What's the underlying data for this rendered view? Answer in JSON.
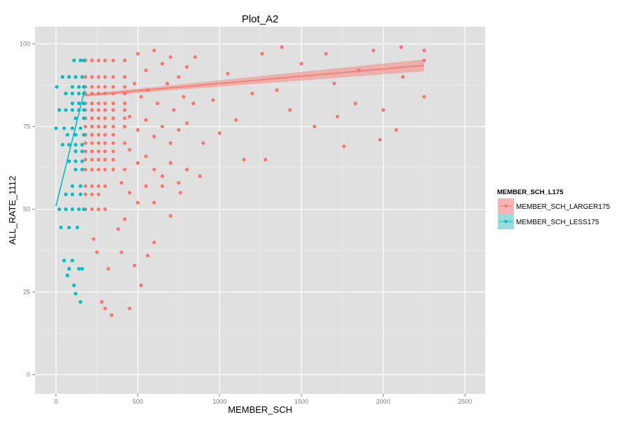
{
  "chart_data": {
    "type": "scatter",
    "title": "Plot_A2",
    "xlabel": "MEMBER_SCH",
    "ylabel": "ALL_RATE_1112",
    "xlim": [
      -128,
      2623
    ],
    "ylim": [
      -5.8,
      105.2
    ],
    "x_ticks": [
      0,
      500,
      1000,
      1500,
      2000,
      2500
    ],
    "x_tick_labels": [
      "0",
      "500",
      "1000",
      "1500",
      "2000",
      "2500"
    ],
    "y_ticks": [
      0,
      25,
      50,
      75,
      100
    ],
    "y_tick_labels": [
      "0",
      "25",
      "50",
      "75",
      "100"
    ],
    "grid": true,
    "background": "#e0e0e0",
    "legend": {
      "title": "MEMBER_SCH_L175",
      "placement": "right",
      "entries": [
        "MEMBER_SCH_LARGER175",
        "MEMBER_SCH_LESS175"
      ]
    },
    "series": [
      {
        "name": "MEMBER_SCH_LARGER175",
        "color": "#f8766d",
        "fit": {
          "x": [
            175,
            2250
          ],
          "y": [
            84.4,
            93.5
          ],
          "ci_halfwidth": [
            0.4,
            1.8
          ]
        },
        "points": [
          [
            180,
            95
          ],
          [
            220,
            95
          ],
          [
            260,
            95
          ],
          [
            300,
            95
          ],
          [
            350,
            95
          ],
          [
            420,
            95
          ],
          [
            180,
            90
          ],
          [
            220,
            90
          ],
          [
            260,
            90
          ],
          [
            300,
            90
          ],
          [
            350,
            90
          ],
          [
            420,
            90
          ],
          [
            180,
            87
          ],
          [
            220,
            87
          ],
          [
            260,
            87
          ],
          [
            300,
            87
          ],
          [
            350,
            87
          ],
          [
            420,
            87
          ],
          [
            180,
            85
          ],
          [
            220,
            85
          ],
          [
            260,
            85
          ],
          [
            300,
            85
          ],
          [
            350,
            85
          ],
          [
            420,
            85
          ],
          [
            180,
            82
          ],
          [
            220,
            82
          ],
          [
            260,
            82
          ],
          [
            300,
            82
          ],
          [
            350,
            82
          ],
          [
            420,
            82
          ],
          [
            180,
            80
          ],
          [
            220,
            80
          ],
          [
            260,
            80
          ],
          [
            300,
            80
          ],
          [
            350,
            80
          ],
          [
            420,
            80
          ],
          [
            180,
            77.5
          ],
          [
            220,
            77.5
          ],
          [
            260,
            77.5
          ],
          [
            300,
            77.5
          ],
          [
            350,
            77.5
          ],
          [
            420,
            77.5
          ],
          [
            180,
            75
          ],
          [
            220,
            75
          ],
          [
            260,
            75
          ],
          [
            300,
            75
          ],
          [
            350,
            75
          ],
          [
            420,
            75
          ],
          [
            180,
            72.5
          ],
          [
            220,
            72.5
          ],
          [
            260,
            72.5
          ],
          [
            300,
            72.5
          ],
          [
            350,
            72.5
          ],
          [
            180,
            70
          ],
          [
            220,
            70
          ],
          [
            260,
            70
          ],
          [
            300,
            70
          ],
          [
            350,
            70
          ],
          [
            420,
            70
          ],
          [
            180,
            67.5
          ],
          [
            220,
            67.5
          ],
          [
            260,
            67.5
          ],
          [
            300,
            67.5
          ],
          [
            350,
            67.5
          ],
          [
            180,
            65
          ],
          [
            220,
            65
          ],
          [
            260,
            65
          ],
          [
            300,
            65
          ],
          [
            350,
            65
          ],
          [
            180,
            62
          ],
          [
            220,
            62
          ],
          [
            260,
            62
          ],
          [
            300,
            62
          ],
          [
            350,
            62
          ],
          [
            420,
            62
          ],
          [
            180,
            57
          ],
          [
            220,
            57
          ],
          [
            260,
            57
          ],
          [
            300,
            57
          ],
          [
            180,
            54.5
          ],
          [
            220,
            54.5
          ],
          [
            260,
            54.5
          ],
          [
            180,
            50
          ],
          [
            220,
            50
          ],
          [
            260,
            50
          ],
          [
            300,
            50
          ],
          [
            500,
            97
          ],
          [
            550,
            92
          ],
          [
            600,
            98
          ],
          [
            650,
            94
          ],
          [
            700,
            96
          ],
          [
            750,
            90
          ],
          [
            800,
            93
          ],
          [
            850,
            96
          ],
          [
            480,
            88
          ],
          [
            520,
            84
          ],
          [
            560,
            86
          ],
          [
            620,
            82
          ],
          [
            680,
            88
          ],
          [
            720,
            80
          ],
          [
            780,
            84
          ],
          [
            840,
            82
          ],
          [
            450,
            78
          ],
          [
            500,
            74
          ],
          [
            550,
            77
          ],
          [
            600,
            72
          ],
          [
            650,
            75
          ],
          [
            700,
            70
          ],
          [
            750,
            74
          ],
          [
            800,
            76
          ],
          [
            450,
            68
          ],
          [
            500,
            64
          ],
          [
            550,
            66
          ],
          [
            600,
            62
          ],
          [
            650,
            60
          ],
          [
            700,
            64
          ],
          [
            750,
            58
          ],
          [
            800,
            62
          ],
          [
            400,
            58
          ],
          [
            450,
            55
          ],
          [
            500,
            52
          ],
          [
            550,
            57
          ],
          [
            600,
            52
          ],
          [
            650,
            57
          ],
          [
            700,
            48
          ],
          [
            760,
            55
          ],
          [
            2250,
            98
          ],
          [
            2250,
            95
          ],
          [
            2250,
            84
          ],
          [
            2110,
            99
          ],
          [
            2120,
            90
          ],
          [
            2080,
            74
          ],
          [
            2000,
            80
          ],
          [
            1980,
            71
          ],
          [
            1940,
            98
          ],
          [
            1850,
            92
          ],
          [
            1830,
            82
          ],
          [
            1760,
            69
          ],
          [
            1720,
            78
          ],
          [
            1700,
            88
          ],
          [
            1650,
            97
          ],
          [
            1580,
            75
          ],
          [
            1500,
            94
          ],
          [
            1430,
            80
          ],
          [
            1380,
            99
          ],
          [
            1350,
            86
          ],
          [
            1280,
            65
          ],
          [
            1260,
            97
          ],
          [
            1200,
            85
          ],
          [
            1150,
            65
          ],
          [
            1100,
            77
          ],
          [
            1050,
            91
          ],
          [
            1000,
            73
          ],
          [
            960,
            83
          ],
          [
            900,
            70
          ],
          [
            880,
            60
          ],
          [
            600,
            40
          ],
          [
            560,
            36
          ],
          [
            520,
            27
          ],
          [
            480,
            33
          ],
          [
            450,
            20
          ],
          [
            400,
            37
          ],
          [
            340,
            18
          ],
          [
            320,
            32
          ],
          [
            300,
            20
          ],
          [
            280,
            22
          ],
          [
            250,
            37
          ],
          [
            230,
            41
          ],
          [
            420,
            47
          ],
          [
            380,
            44
          ]
        ]
      },
      {
        "name": "MEMBER_SCH_LESS175",
        "color": "#00bfc4",
        "fit": {
          "x": [
            0,
            175
          ],
          "y": [
            51,
            86
          ],
          "ci_halfwidth": [
            0.4,
            0.4
          ]
        },
        "points": [
          [
            110,
            95
          ],
          [
            150,
            95
          ],
          [
            170,
            95
          ],
          [
            40,
            90
          ],
          [
            80,
            90
          ],
          [
            120,
            90
          ],
          [
            160,
            90
          ],
          [
            100,
            87
          ],
          [
            140,
            87
          ],
          [
            170,
            87
          ],
          [
            60,
            85
          ],
          [
            100,
            85
          ],
          [
            140,
            85
          ],
          [
            170,
            85
          ],
          [
            100,
            82
          ],
          [
            140,
            82
          ],
          [
            170,
            82
          ],
          [
            20,
            80
          ],
          [
            60,
            80
          ],
          [
            100,
            80
          ],
          [
            140,
            80
          ],
          [
            170,
            80
          ],
          [
            120,
            77.5
          ],
          [
            170,
            77.5
          ],
          [
            0,
            74.5
          ],
          [
            50,
            74.5
          ],
          [
            100,
            74.5
          ],
          [
            150,
            74.5
          ],
          [
            70,
            72.5
          ],
          [
            120,
            72.5
          ],
          [
            170,
            72.5
          ],
          [
            40,
            69.5
          ],
          [
            80,
            69.5
          ],
          [
            120,
            69.5
          ],
          [
            160,
            69.5
          ],
          [
            120,
            67.5
          ],
          [
            160,
            67.5
          ],
          [
            80,
            64.5
          ],
          [
            120,
            64.5
          ],
          [
            160,
            64.5
          ],
          [
            120,
            62
          ],
          [
            160,
            62
          ],
          [
            100,
            57
          ],
          [
            150,
            57
          ],
          [
            60,
            54.5
          ],
          [
            100,
            54.5
          ],
          [
            150,
            54.5
          ],
          [
            20,
            50
          ],
          [
            60,
            50
          ],
          [
            100,
            50
          ],
          [
            140,
            50
          ],
          [
            170,
            50
          ],
          [
            5,
            87
          ],
          [
            30,
            44.5
          ],
          [
            80,
            44.5
          ],
          [
            130,
            44.5
          ],
          [
            50,
            34.5
          ],
          [
            70,
            30
          ],
          [
            80,
            32
          ],
          [
            100,
            34.5
          ],
          [
            110,
            27
          ],
          [
            120,
            24.5
          ],
          [
            150,
            22
          ],
          [
            140,
            32
          ],
          [
            160,
            32
          ]
        ]
      }
    ]
  }
}
